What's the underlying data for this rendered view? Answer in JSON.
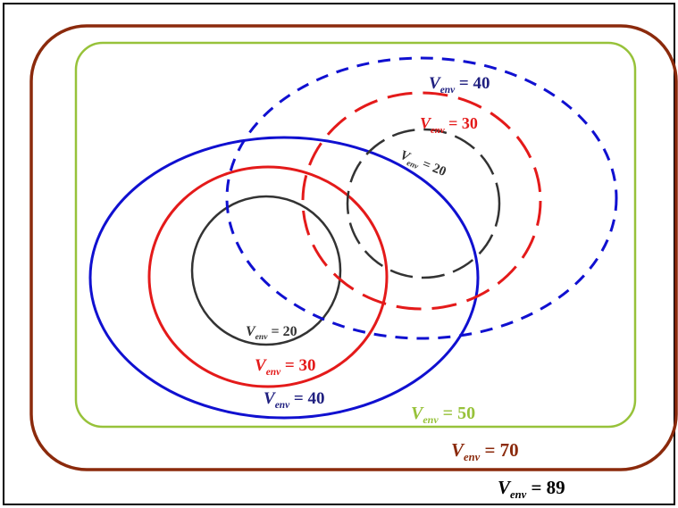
{
  "variable": "V",
  "subscript": "env",
  "colors": {
    "frame": "#000000",
    "v89": "#000000",
    "v70": "#8b2a0c",
    "v50": "#97c23a",
    "v40": "#1010d0",
    "v30": "#e41a1a",
    "v20": "#333333",
    "label40": "#202080"
  },
  "regions": [
    {
      "id": "v89",
      "value": "89",
      "style": "solid"
    },
    {
      "id": "v70",
      "value": "70",
      "style": "solid"
    },
    {
      "id": "v50",
      "value": "50",
      "style": "solid"
    },
    {
      "id": "solid-v40",
      "value": "40",
      "style": "solid"
    },
    {
      "id": "solid-v30",
      "value": "30",
      "style": "solid"
    },
    {
      "id": "solid-v20",
      "value": "20",
      "style": "solid"
    },
    {
      "id": "dashed-v40",
      "value": "40",
      "style": "dashed"
    },
    {
      "id": "dashed-v30",
      "value": "30",
      "style": "dashed"
    },
    {
      "id": "dashed-v20",
      "value": "20",
      "style": "dashed"
    }
  ]
}
